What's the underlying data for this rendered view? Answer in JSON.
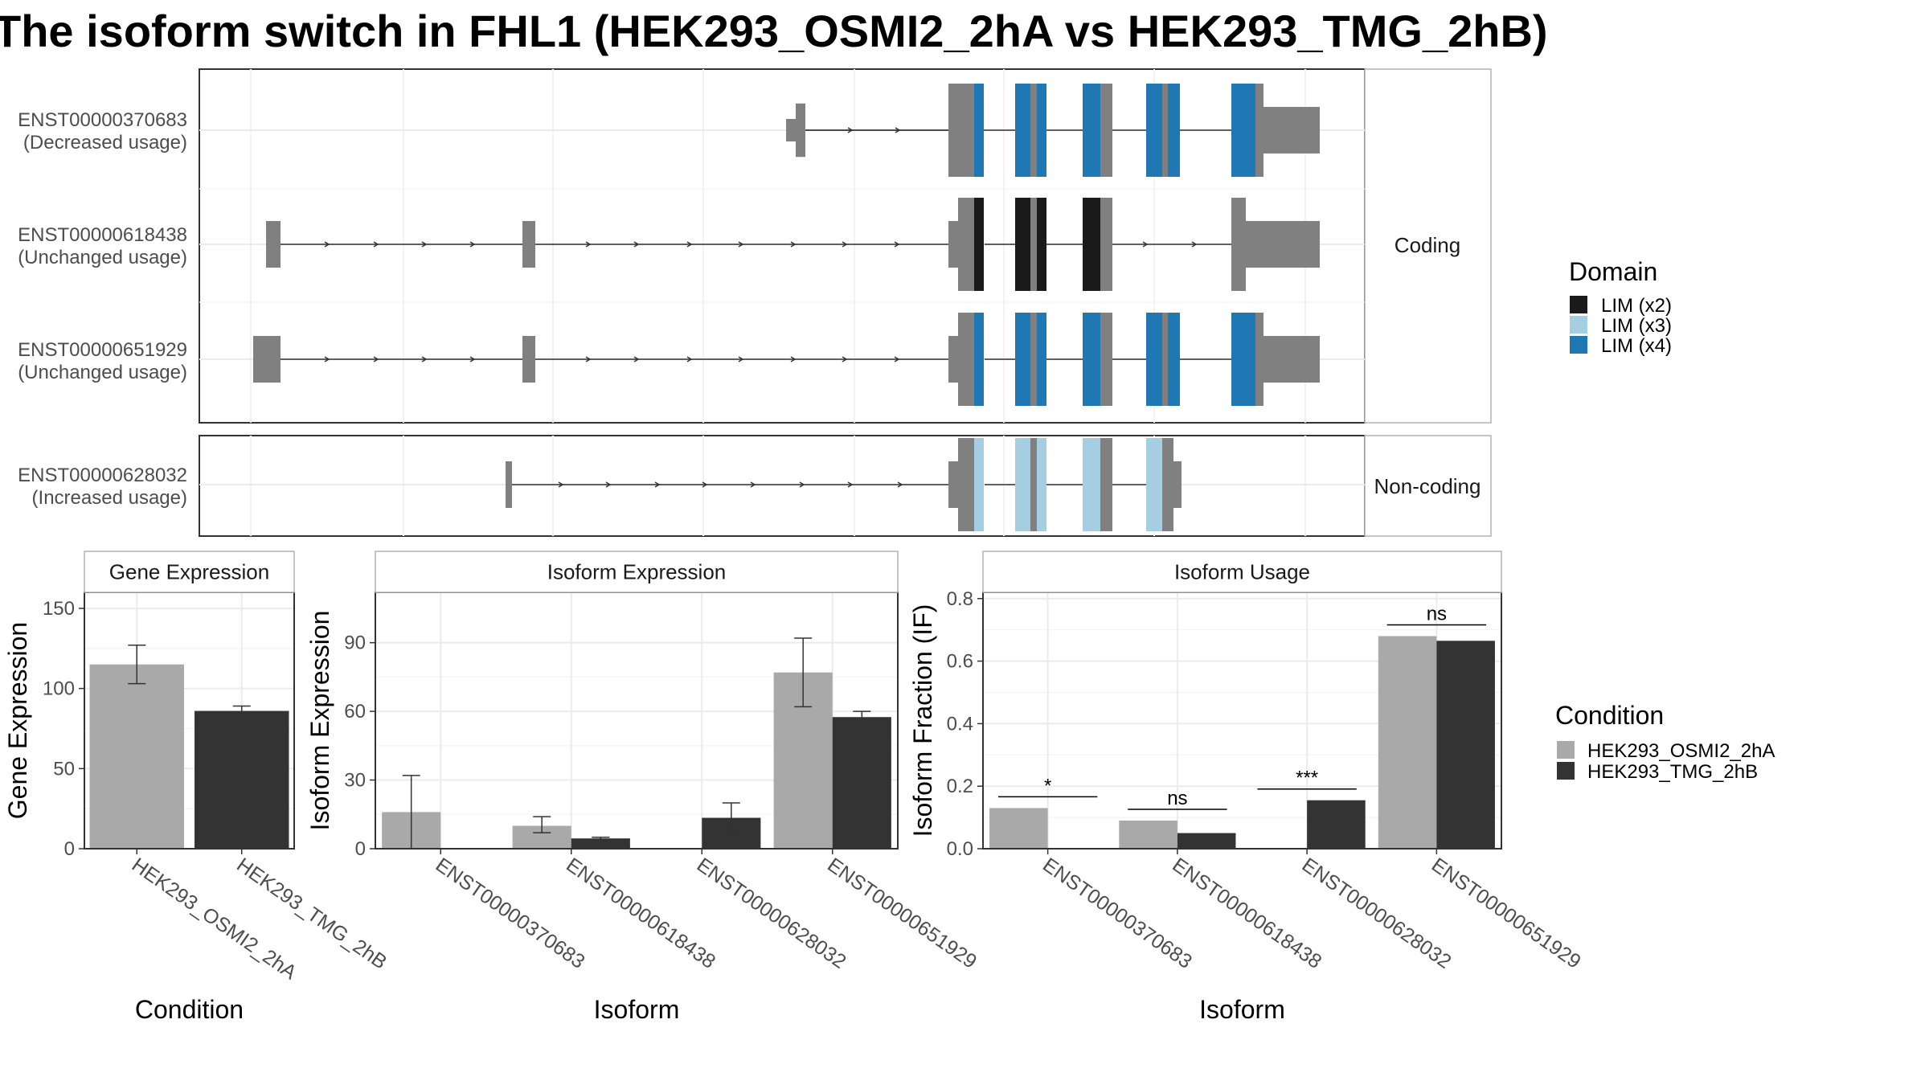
{
  "title": "The isoform switch in FHL1 (HEK293_OSMI2_2hA vs HEK293_TMG_2hB)",
  "colors": {
    "exon": "#808080",
    "lim_x2": "#1a1a1a",
    "lim_x3": "#a6cee3",
    "lim_x4": "#1f78b4",
    "cond_a": "#a9a9a9",
    "cond_b": "#333333"
  },
  "legend_domain": {
    "title": "Domain",
    "items": [
      {
        "label": "LIM (x2)",
        "color": "#1a1a1a"
      },
      {
        "label": "LIM (x3)",
        "color": "#a6cee3"
      },
      {
        "label": "LIM (x4)",
        "color": "#1f78b4"
      }
    ]
  },
  "legend_condition": {
    "title": "Condition",
    "items": [
      {
        "label": "HEK293_OSMI2_2hA",
        "color": "#a9a9a9"
      },
      {
        "label": "HEK293_TMG_2hB",
        "color": "#333333"
      }
    ]
  },
  "transcripts": {
    "coding_strip": "Coding",
    "noncoding_strip": "Non-coding",
    "items": [
      {
        "id": "ENST00000370683",
        "usage": "(Decreased usage)",
        "group": "coding",
        "exons": [
          [
            0.53,
            0.54,
            "s"
          ],
          [
            0.54,
            0.55,
            "t"
          ],
          [
            0.74,
            0.76,
            "t"
          ],
          [
            0.76,
            0.77,
            "t"
          ],
          [
            0.81,
            0.82,
            "t"
          ],
          [
            0.82,
            0.83,
            "t"
          ],
          [
            0.83,
            0.84,
            "t"
          ],
          [
            0.86,
            0.88,
            "t"
          ],
          [
            0.88,
            0.89,
            "t"
          ],
          [
            0.91,
            0.93,
            "t"
          ],
          [
            0.93,
            0.94,
            "t"
          ],
          [
            0.99,
            1.01,
            "t"
          ],
          [
            1.01,
            1.08,
            "s"
          ]
        ]
      },
      {
        "id": "ENST00000618438",
        "usage": "(Unchanged usage)",
        "group": "coding"
      },
      {
        "id": "ENST00000651929",
        "usage": "(Unchanged usage)",
        "group": "coding"
      },
      {
        "id": "ENST00000628032",
        "usage": "(Increased usage)",
        "group": "noncoding"
      }
    ]
  },
  "chart_data": [
    {
      "type": "bar",
      "panel": "Gene Expression",
      "categories": [
        "HEK293_OSMI2_2hA",
        "HEK293_TMG_2hB"
      ],
      "values": [
        115,
        86
      ],
      "errors": [
        [
          103,
          127
        ],
        [
          84,
          89
        ]
      ],
      "ylim": [
        0,
        160
      ],
      "yticks": [
        0,
        50,
        100,
        150
      ],
      "xlabel": "Condition",
      "ylabel": "Gene Expression"
    },
    {
      "type": "bar",
      "panel": "Isoform Expression",
      "categories": [
        "ENST00000370683",
        "ENST00000618438",
        "ENST00000628032",
        "ENST00000651929"
      ],
      "series": [
        {
          "name": "HEK293_OSMI2_2hA",
          "values": [
            16,
            10,
            0,
            77
          ],
          "errors": [
            [
              0,
              32
            ],
            [
              7,
              14
            ],
            [
              0,
              0
            ],
            [
              62,
              92
            ]
          ]
        },
        {
          "name": "HEK293_TMG_2hB",
          "values": [
            0,
            4.5,
            13.5,
            57.5
          ],
          "errors": [
            [
              0,
              0
            ],
            [
              4,
              5
            ],
            [
              7,
              20
            ],
            [
              55,
              60
            ]
          ]
        }
      ],
      "ylim": [
        0,
        112
      ],
      "yticks": [
        0,
        30,
        60,
        90
      ],
      "xlabel": "Isoform",
      "ylabel": "Isoform Expression"
    },
    {
      "type": "bar",
      "panel": "Isoform Usage",
      "categories": [
        "ENST00000370683",
        "ENST00000618438",
        "ENST00000628032",
        "ENST00000651929"
      ],
      "series": [
        {
          "name": "HEK293_OSMI2_2hA",
          "values": [
            0.13,
            0.09,
            0.0,
            0.68
          ]
        },
        {
          "name": "HEK293_TMG_2hB",
          "values": [
            0.0,
            0.05,
            0.155,
            0.665
          ]
        }
      ],
      "significance": [
        "*",
        "ns",
        "***",
        "ns"
      ],
      "ylim": [
        0,
        0.82
      ],
      "yticks": [
        0.0,
        0.2,
        0.4,
        0.6,
        0.8
      ],
      "ytick_labels": [
        "0.0",
        "0.2",
        "0.4",
        "0.6",
        "0.8"
      ],
      "xlabel": "Isoform",
      "ylabel": "Isoform Fraction (IF)"
    }
  ]
}
